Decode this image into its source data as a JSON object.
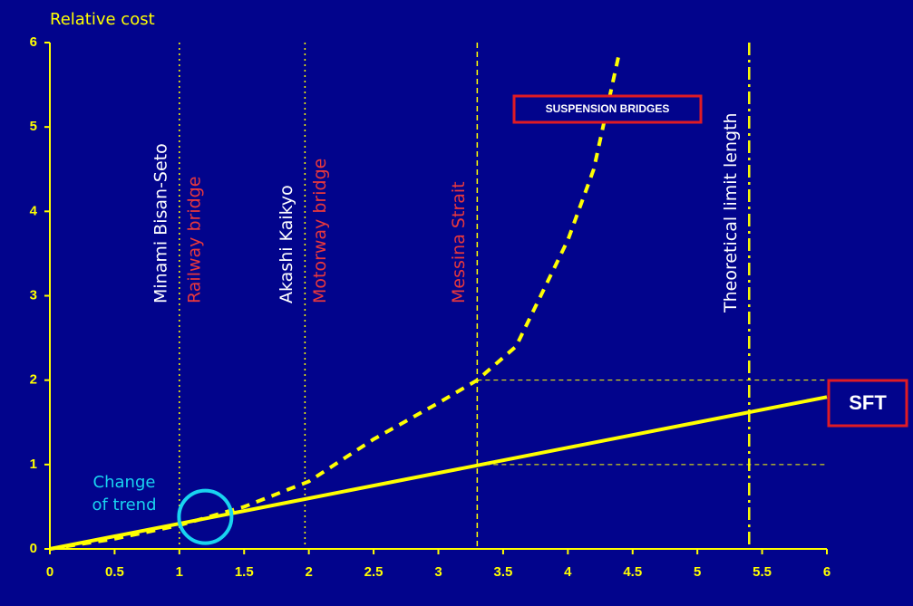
{
  "chart_data": {
    "type": "line",
    "ylabel": "Relative cost",
    "xlim": [
      0,
      6
    ],
    "ylim": [
      0,
      6
    ],
    "xticks": [
      0,
      0.5,
      1,
      1.5,
      2,
      2.5,
      3,
      3.5,
      4,
      4.5,
      5,
      5.5,
      6
    ],
    "yticks": [
      0,
      1,
      2,
      3,
      4,
      5,
      6
    ],
    "series": [
      {
        "name": "SFT",
        "color": "#ffff00",
        "style": "solid",
        "x": [
          0,
          1,
          2,
          3,
          4,
          5,
          6
        ],
        "values": [
          0,
          0.3,
          0.6,
          0.9,
          1.2,
          1.5,
          1.8
        ]
      },
      {
        "name": "SUSPENSION BRIDGES",
        "color": "#ffff00",
        "style": "dashed",
        "x": [
          0,
          0.5,
          1,
          1.5,
          2,
          2.5,
          3,
          3.3,
          3.6,
          4,
          4.2,
          4.4
        ],
        "values": [
          0,
          0.12,
          0.28,
          0.5,
          0.8,
          1.3,
          1.73,
          2.0,
          2.4,
          3.66,
          4.5,
          5.9
        ]
      }
    ],
    "vlines": [
      {
        "x": 1,
        "style": "dotted",
        "labels": [
          {
            "text": "Minami Bisan-Seto",
            "color": "#ffffff",
            "side": "left"
          },
          {
            "text": "Railway bridge",
            "color": "#e8383d",
            "side": "right"
          }
        ]
      },
      {
        "x": 1.97,
        "style": "dotted",
        "labels": [
          {
            "text": "Akashi Kaikyo",
            "color": "#ffffff",
            "side": "left"
          },
          {
            "text": "Motorway bridge",
            "color": "#e8383d",
            "side": "right"
          }
        ]
      },
      {
        "x": 3.3,
        "style": "dashed",
        "labels": [
          {
            "text": "Messina Strait",
            "color": "#e8383d",
            "side": "left"
          }
        ]
      },
      {
        "x": 5.4,
        "style": "dashdot",
        "labels": [
          {
            "text": "Theoretical limit length",
            "color": "#ffffff",
            "side": "left"
          }
        ]
      }
    ],
    "hlines": [
      {
        "y": 1,
        "xrange": [
          3.3,
          6
        ]
      },
      {
        "y": 2,
        "xrange": [
          3.3,
          6
        ]
      }
    ],
    "annotation": {
      "lines": [
        "Change",
        "of trend"
      ],
      "color": "#19d3f0",
      "x": 1.2,
      "y": 0.38
    }
  }
}
